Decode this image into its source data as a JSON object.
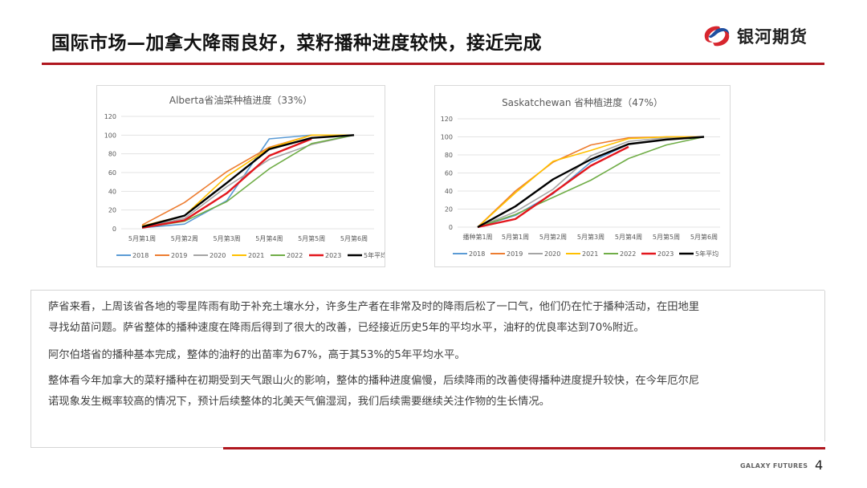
{
  "header": {
    "title": "国际市场—加拿大降雨良好，菜籽播种进度较快，接近完成",
    "logo_text": "银河期货",
    "logo_colors": {
      "red": "#d7262e",
      "blue": "#1f4fa0"
    },
    "accent_line_color": "#b0171f"
  },
  "chart_data": [
    {
      "type": "line",
      "title": "Alberta省油菜种植进度（33%）",
      "xlabel": "",
      "ylabel": "",
      "ylim": [
        0,
        120
      ],
      "yticks": [
        0,
        20,
        40,
        60,
        80,
        100,
        120
      ],
      "grid": true,
      "legend_position": "bottom",
      "categories": [
        "5月第1周",
        "5月第2周",
        "5月第3周",
        "5月第4周",
        "5月第5周",
        "5月第6周"
      ],
      "series": [
        {
          "name": "2018",
          "color": "#5b9bd5",
          "values": [
            1,
            5,
            30,
            96,
            100,
            null
          ]
        },
        {
          "name": "2019",
          "color": "#ed7d31",
          "values": [
            4,
            28,
            61,
            87,
            100,
            100
          ]
        },
        {
          "name": "2020",
          "color": "#a5a5a5",
          "values": [
            2,
            11,
            45,
            74,
            90,
            100
          ]
        },
        {
          "name": "2021",
          "color": "#ffc000",
          "values": [
            3,
            14,
            56,
            86,
            100,
            100
          ]
        },
        {
          "name": "2022",
          "color": "#70ad47",
          "values": [
            1,
            8,
            29,
            64,
            91,
            100
          ]
        },
        {
          "name": "2023",
          "color": "#e3171d",
          "values": [
            1,
            9,
            38,
            78,
            96,
            null
          ]
        },
        {
          "name": "5年平均",
          "color": "#000000",
          "values": [
            2,
            14,
            49,
            85,
            97,
            100
          ]
        }
      ]
    },
    {
      "type": "line",
      "title": "Saskatchewan 省种植进度（47%）",
      "xlabel": "",
      "ylabel": "",
      "ylim": [
        0,
        120
      ],
      "yticks": [
        0,
        20,
        40,
        60,
        80,
        100,
        120
      ],
      "grid": true,
      "legend_position": "bottom",
      "categories": [
        "播种第1周",
        "5月第1周",
        "5月第2周",
        "5月第3周",
        "5月第4周",
        "5月第5周",
        "5月第6周"
      ],
      "series": [
        {
          "name": "2018",
          "color": "#5b9bd5",
          "values": [
            0,
            13,
            37,
            72,
            92,
            97,
            100
          ]
        },
        {
          "name": "2019",
          "color": "#ed7d31",
          "values": [
            0,
            40,
            72,
            91,
            99,
            100,
            100
          ]
        },
        {
          "name": "2020",
          "color": "#a5a5a5",
          "values": [
            0,
            17,
            42,
            79,
            95,
            99,
            100
          ]
        },
        {
          "name": "2021",
          "color": "#ffc000",
          "values": [
            0,
            38,
            73,
            85,
            98,
            100,
            100
          ]
        },
        {
          "name": "2022",
          "color": "#70ad47",
          "values": [
            0,
            14,
            33,
            52,
            76,
            91,
            100
          ]
        },
        {
          "name": "2023",
          "color": "#e3171d",
          "values": [
            0,
            9,
            38,
            68,
            89,
            null,
            null
          ]
        },
        {
          "name": "5年平均",
          "color": "#000000",
          "values": [
            0,
            23,
            53,
            75,
            92,
            97,
            100
          ]
        }
      ]
    }
  ],
  "text": {
    "paragraphs": [
      [
        "萨省来看，上周该省各地的零星阵雨有助于补充土壤水分，许多生产者在非常及时的降雨后松了一口气，他们仍在忙于播种活动，在田地里",
        "寻找幼苗问题。萨省整体的播种速度在降雨后得到了很大的改善，已经接近历史5年的平均水平，油籽的优良率达到70%附近。"
      ],
      [
        "阿尔伯塔省的播种基本完成，整体的油籽的出苗率为67%，高于其53%的5年平均水平。"
      ],
      [
        "整体看今年加拿大的菜籽播种在初期受到天气跟山火的影响，整体的播种进度偏慢，后续降雨的改善使得播种进度提升较快，在今年厄尔尼",
        "诺现象发生概率较高的情况下，预计后续整体的北美天气偏湿润，我们后续需要继续关注作物的生长情况。"
      ]
    ]
  },
  "footer": {
    "brand": "GALAXY FUTURES",
    "page": "4"
  }
}
